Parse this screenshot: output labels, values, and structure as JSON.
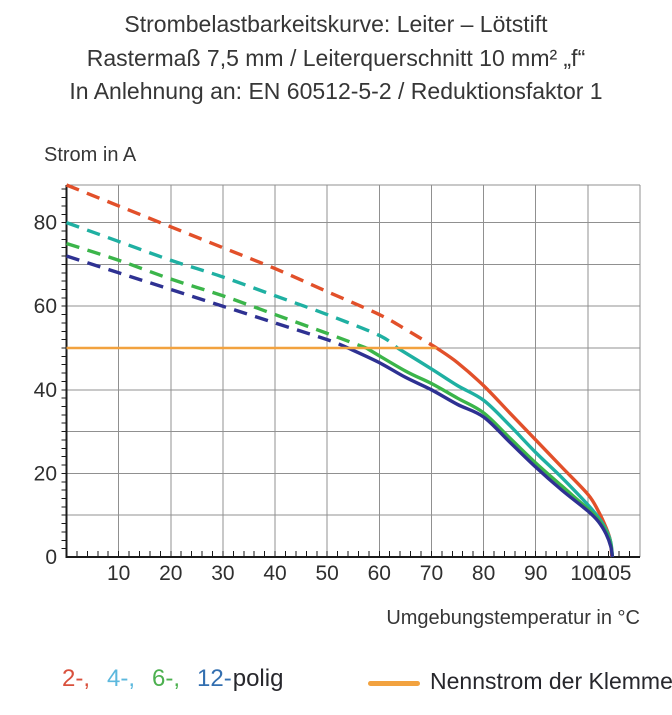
{
  "title": {
    "line1": "Strombelastbarkeitskurve: Leiter – Lötstift",
    "line2": "Rastermaß 7,5 mm / Leiterquerschnitt 10 mm² „f“",
    "line3": "In Anlehnung an: EN 60512-5-2 / Reduktionsfaktor 1"
  },
  "chart_data": {
    "type": "line",
    "title": "Strombelastbarkeitskurve: Leiter – Lötstift",
    "ylabel": "Strom in A",
    "xlabel": "Umgebungstemperatur in °C",
    "xlim": [
      0,
      110
    ],
    "ylim": [
      0,
      89
    ],
    "x_ticks_labeled": [
      10,
      20,
      30,
      40,
      50,
      60,
      70,
      80,
      90,
      100,
      105
    ],
    "y_ticks_labeled": [
      0,
      20,
      40,
      60,
      80
    ],
    "grid_step": {
      "x": 10,
      "y": 10
    },
    "minor_tick_step": {
      "x": 2,
      "y": 2
    },
    "grid_color": "#909090",
    "axis_color": "#1a1a1a",
    "series": [
      {
        "name": "2-polig",
        "color": "#e2502a",
        "style": "dashed-then-solid",
        "solid_from": 71,
        "points": [
          [
            0,
            89
          ],
          [
            10,
            84
          ],
          [
            20,
            79
          ],
          [
            30,
            74
          ],
          [
            40,
            69
          ],
          [
            50,
            63.5
          ],
          [
            60,
            58
          ],
          [
            65,
            54.5
          ],
          [
            71,
            50
          ],
          [
            75,
            46.5
          ],
          [
            80,
            41
          ],
          [
            85,
            34.5
          ],
          [
            90,
            28
          ],
          [
            95,
            21.5
          ],
          [
            100,
            15
          ],
          [
            102,
            11
          ],
          [
            103.5,
            7
          ],
          [
            104.3,
            4
          ],
          [
            104.6,
            0
          ]
        ]
      },
      {
        "name": "4-polig",
        "color": "#1fb0a2",
        "style": "dashed-then-solid",
        "solid_from": 63.5,
        "points": [
          [
            0,
            80
          ],
          [
            10,
            75.5
          ],
          [
            20,
            71
          ],
          [
            30,
            67
          ],
          [
            40,
            62.5
          ],
          [
            50,
            58
          ],
          [
            60,
            53
          ],
          [
            63.5,
            50
          ],
          [
            70,
            45
          ],
          [
            75,
            41
          ],
          [
            80,
            37.5
          ],
          [
            85,
            31.5
          ],
          [
            90,
            25
          ],
          [
            95,
            19
          ],
          [
            100,
            12.5
          ],
          [
            102,
            9.5
          ],
          [
            103.5,
            6.5
          ],
          [
            104.4,
            3.5
          ],
          [
            104.7,
            0
          ]
        ]
      },
      {
        "name": "6-polig",
        "color": "#3bb54a",
        "style": "dashed-then-solid",
        "solid_from": 57.5,
        "points": [
          [
            0,
            75
          ],
          [
            10,
            71
          ],
          [
            20,
            66.5
          ],
          [
            30,
            62.5
          ],
          [
            40,
            58
          ],
          [
            50,
            53.5
          ],
          [
            57.5,
            50
          ],
          [
            65,
            44.5
          ],
          [
            70,
            41.5
          ],
          [
            75,
            38
          ],
          [
            80,
            34.5
          ],
          [
            85,
            28.5
          ],
          [
            90,
            22.5
          ],
          [
            95,
            17
          ],
          [
            100,
            11.5
          ],
          [
            102,
            9
          ],
          [
            103.5,
            6
          ],
          [
            104.4,
            3
          ],
          [
            104.7,
            0
          ]
        ]
      },
      {
        "name": "12-polig",
        "color": "#2e3192",
        "style": "dashed-then-solid",
        "solid_from": 54,
        "points": [
          [
            0,
            72
          ],
          [
            10,
            68
          ],
          [
            20,
            64
          ],
          [
            30,
            60
          ],
          [
            40,
            56
          ],
          [
            50,
            52
          ],
          [
            54,
            50
          ],
          [
            60,
            46.5
          ],
          [
            65,
            43
          ],
          [
            70,
            40
          ],
          [
            75,
            36.5
          ],
          [
            80,
            33.5
          ],
          [
            85,
            27.5
          ],
          [
            90,
            21.5
          ],
          [
            95,
            16
          ],
          [
            100,
            11
          ],
          [
            102,
            8.5
          ],
          [
            103.5,
            5.5
          ],
          [
            104.4,
            2.5
          ],
          [
            104.7,
            0
          ]
        ]
      },
      {
        "name": "Nennstrom der Klemme",
        "color": "#f2a23f",
        "style": "solid",
        "points": [
          [
            0,
            50
          ],
          [
            71,
            50
          ]
        ]
      }
    ]
  },
  "legend": {
    "poles": [
      {
        "label": "2-,",
        "color": "#d9503c"
      },
      {
        "label": "4-,",
        "color": "#5cb8dd"
      },
      {
        "label": "6-,",
        "color": "#4cb04f"
      },
      {
        "label": "12-",
        "color": "#336fb0"
      }
    ],
    "poles_suffix": "polig",
    "nennstrom_label": "Nennstrom der Klemme",
    "nennstrom_color": "#f2a23f"
  }
}
